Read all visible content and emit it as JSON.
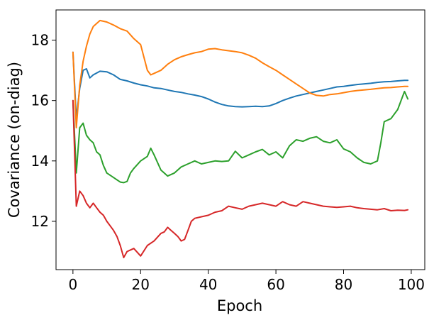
{
  "chart_data": {
    "type": "line",
    "title": "",
    "xlabel": "Epoch",
    "ylabel": "Covariance (on-diag)",
    "xlim": [
      -5,
      104
    ],
    "ylim": [
      10.4,
      19.0
    ],
    "xticks": [
      0,
      20,
      40,
      60,
      80,
      100
    ],
    "yticks": [
      12,
      14,
      16,
      18
    ],
    "grid": false,
    "legend": "none",
    "series": [
      {
        "color": "#1f77b4",
        "x": [
          0,
          1,
          2,
          3,
          4,
          5,
          6,
          8,
          10,
          12,
          14,
          16,
          18,
          20,
          22,
          24,
          26,
          28,
          30,
          32,
          34,
          36,
          38,
          40,
          42,
          44,
          46,
          48,
          50,
          52,
          54,
          56,
          58,
          60,
          62,
          64,
          66,
          68,
          70,
          72,
          74,
          76,
          78,
          80,
          82,
          84,
          86,
          88,
          90,
          92,
          94,
          96,
          98,
          99
        ],
        "y": [
          17.6,
          15.4,
          16.4,
          17.0,
          17.05,
          16.75,
          16.85,
          16.97,
          16.95,
          16.85,
          16.7,
          16.65,
          16.58,
          16.52,
          16.48,
          16.42,
          16.4,
          16.35,
          16.3,
          16.27,
          16.22,
          16.18,
          16.13,
          16.05,
          15.95,
          15.87,
          15.82,
          15.8,
          15.79,
          15.8,
          15.81,
          15.8,
          15.82,
          15.9,
          16.0,
          16.08,
          16.15,
          16.2,
          16.25,
          16.3,
          16.35,
          16.4,
          16.45,
          16.47,
          16.5,
          16.53,
          16.55,
          16.57,
          16.6,
          16.62,
          16.63,
          16.65,
          16.67,
          16.67
        ]
      },
      {
        "color": "#ff7f0e",
        "x": [
          0,
          1,
          2,
          3,
          4,
          5,
          6,
          8,
          10,
          12,
          14,
          16,
          18,
          20,
          22,
          23,
          24,
          26,
          28,
          30,
          32,
          34,
          36,
          38,
          40,
          42,
          44,
          46,
          48,
          50,
          52,
          54,
          56,
          58,
          60,
          62,
          64,
          66,
          68,
          70,
          72,
          74,
          76,
          78,
          80,
          82,
          84,
          86,
          88,
          90,
          92,
          94,
          96,
          98,
          99
        ],
        "y": [
          17.6,
          15.1,
          16.5,
          17.3,
          17.8,
          18.2,
          18.45,
          18.65,
          18.6,
          18.5,
          18.38,
          18.3,
          18.05,
          17.85,
          17.0,
          16.85,
          16.9,
          17.0,
          17.2,
          17.35,
          17.45,
          17.52,
          17.58,
          17.62,
          17.7,
          17.72,
          17.68,
          17.65,
          17.62,
          17.58,
          17.5,
          17.4,
          17.25,
          17.12,
          17.0,
          16.85,
          16.7,
          16.55,
          16.4,
          16.25,
          16.17,
          16.15,
          16.2,
          16.22,
          16.26,
          16.3,
          16.33,
          16.35,
          16.37,
          16.4,
          16.42,
          16.43,
          16.45,
          16.47,
          16.47
        ]
      },
      {
        "color": "#2ca02c",
        "x": [
          0,
          1,
          2,
          3,
          4,
          5,
          6,
          7,
          8,
          9,
          10,
          12,
          14,
          15,
          16,
          17,
          18,
          20,
          22,
          23,
          24,
          26,
          28,
          30,
          32,
          34,
          36,
          38,
          40,
          42,
          44,
          46,
          48,
          50,
          52,
          54,
          56,
          58,
          60,
          62,
          64,
          66,
          68,
          70,
          72,
          74,
          76,
          78,
          80,
          82,
          84,
          86,
          88,
          90,
          91,
          92,
          94,
          96,
          98,
          99
        ],
        "y": [
          16.0,
          13.6,
          15.1,
          15.25,
          14.85,
          14.7,
          14.6,
          14.3,
          14.2,
          13.85,
          13.6,
          13.45,
          13.3,
          13.28,
          13.32,
          13.6,
          13.75,
          14.0,
          14.15,
          14.42,
          14.2,
          13.7,
          13.5,
          13.6,
          13.8,
          13.9,
          14.0,
          13.9,
          13.95,
          14.0,
          13.98,
          14.0,
          14.32,
          14.1,
          14.2,
          14.3,
          14.38,
          14.2,
          14.3,
          14.1,
          14.5,
          14.7,
          14.65,
          14.75,
          14.8,
          14.65,
          14.6,
          14.7,
          14.4,
          14.3,
          14.1,
          13.95,
          13.9,
          14.0,
          14.6,
          15.3,
          15.4,
          15.7,
          16.3,
          16.05
        ]
      },
      {
        "color": "#d62728",
        "x": [
          0,
          1,
          2,
          3,
          4,
          5,
          6,
          7,
          8,
          9,
          10,
          12,
          13,
          14,
          15,
          16,
          17,
          18,
          20,
          22,
          24,
          26,
          27,
          28,
          29,
          30,
          31,
          32,
          33,
          34,
          35,
          36,
          38,
          40,
          42,
          44,
          46,
          48,
          50,
          52,
          54,
          56,
          58,
          60,
          62,
          64,
          66,
          68,
          70,
          72,
          74,
          76,
          78,
          80,
          82,
          84,
          86,
          88,
          90,
          92,
          94,
          96,
          98,
          99
        ],
        "y": [
          16.0,
          12.5,
          13.0,
          12.85,
          12.6,
          12.45,
          12.6,
          12.45,
          12.3,
          12.2,
          12.0,
          11.7,
          11.5,
          11.2,
          10.8,
          11.0,
          11.05,
          11.1,
          10.85,
          11.2,
          11.35,
          11.6,
          11.65,
          11.8,
          11.7,
          11.6,
          11.5,
          11.35,
          11.4,
          11.7,
          12.0,
          12.1,
          12.15,
          12.2,
          12.3,
          12.35,
          12.5,
          12.45,
          12.4,
          12.5,
          12.55,
          12.6,
          12.55,
          12.5,
          12.65,
          12.55,
          12.5,
          12.65,
          12.6,
          12.55,
          12.5,
          12.48,
          12.46,
          12.48,
          12.5,
          12.45,
          12.42,
          12.4,
          12.38,
          12.42,
          12.35,
          12.37,
          12.36,
          12.38
        ]
      }
    ]
  }
}
